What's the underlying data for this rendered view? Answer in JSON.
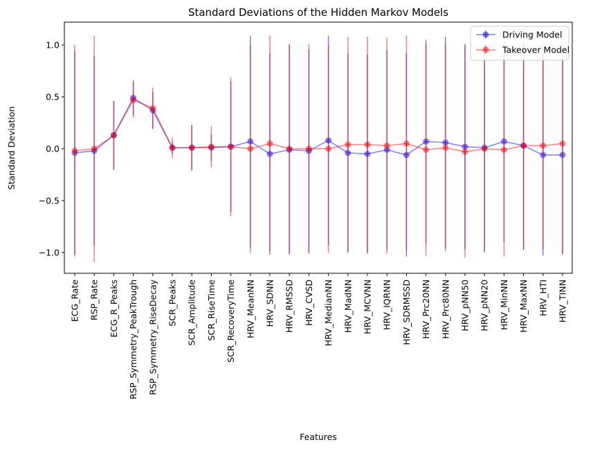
{
  "chart_data": {
    "type": "line",
    "title": "Standard Deviations of the Hidden Markov Models",
    "xlabel": "Features",
    "ylabel": "Standard Deviation",
    "ylim": [
      -1.2,
      1.22
    ],
    "yticks": [
      -1.0,
      -0.5,
      0.0,
      0.5,
      1.0
    ],
    "ytick_labels": [
      "−1.0",
      "−0.5",
      "0.0",
      "0.5",
      "1.0"
    ],
    "grid": false,
    "legend_position": "top-right",
    "categories": [
      "ECG_Rate",
      "RSP_Rate",
      "ECG_R_Peaks",
      "RSP_Symmetry_PeakTrough",
      "RSP_Symmetry_RiseDecay",
      "SCR_Peaks",
      "SCR_Amplitude",
      "SCR_RiseTime",
      "SCR_RecoveryTime",
      "HRV_MeanNN",
      "HRV_SDNN",
      "HRV_RMSSD",
      "HRV_CVSD",
      "HRV_MedianNN",
      "HRV_MadNN",
      "HRV_MCVNN",
      "HRV_IQRNN",
      "HRV_SDRMSSD",
      "HRV_Prc20NN",
      "HRV_Prc80NN",
      "HRV_pNN50",
      "HRV_pNN20",
      "HRV_MinNN",
      "HRV_MaxNN",
      "HRV_HTI",
      "HRV_TINN"
    ],
    "series": [
      {
        "name": "Driving Model",
        "color": "#0000ff",
        "values": [
          -0.04,
          -0.02,
          0.13,
          0.49,
          0.37,
          0.01,
          0.01,
          0.01,
          0.02,
          0.07,
          -0.05,
          -0.01,
          -0.02,
          0.08,
          -0.04,
          -0.05,
          -0.01,
          -0.06,
          0.07,
          0.06,
          0.02,
          0.01,
          0.07,
          0.03,
          -0.06,
          -0.06
        ],
        "errors": [
          0.98,
          0.91,
          0.33,
          0.17,
          0.18,
          0.06,
          0.22,
          0.13,
          0.63,
          1.02,
          0.97,
          1.01,
          0.98,
          1.01,
          0.96,
          0.96,
          0.96,
          0.98,
          0.98,
          1.02,
          0.99,
          1.0,
          0.97,
          1.0,
          0.97,
          0.96
        ]
      },
      {
        "name": "Takeover Model",
        "color": "#ff0000",
        "values": [
          -0.02,
          0.0,
          0.13,
          0.47,
          0.39,
          0.01,
          0.01,
          0.02,
          0.02,
          0.0,
          0.05,
          0.0,
          0.0,
          0.0,
          0.04,
          0.04,
          0.03,
          0.05,
          -0.01,
          0.01,
          -0.03,
          0.0,
          -0.01,
          0.03,
          0.03,
          0.05
        ],
        "errors": [
          1.02,
          1.09,
          0.33,
          0.17,
          0.2,
          0.1,
          0.22,
          0.2,
          0.67,
          1.0,
          1.04,
          1.01,
          1.01,
          1.0,
          1.04,
          1.04,
          1.04,
          1.04,
          1.02,
          1.0,
          1.02,
          1.0,
          1.03,
          1.01,
          1.0,
          1.06
        ]
      }
    ]
  }
}
